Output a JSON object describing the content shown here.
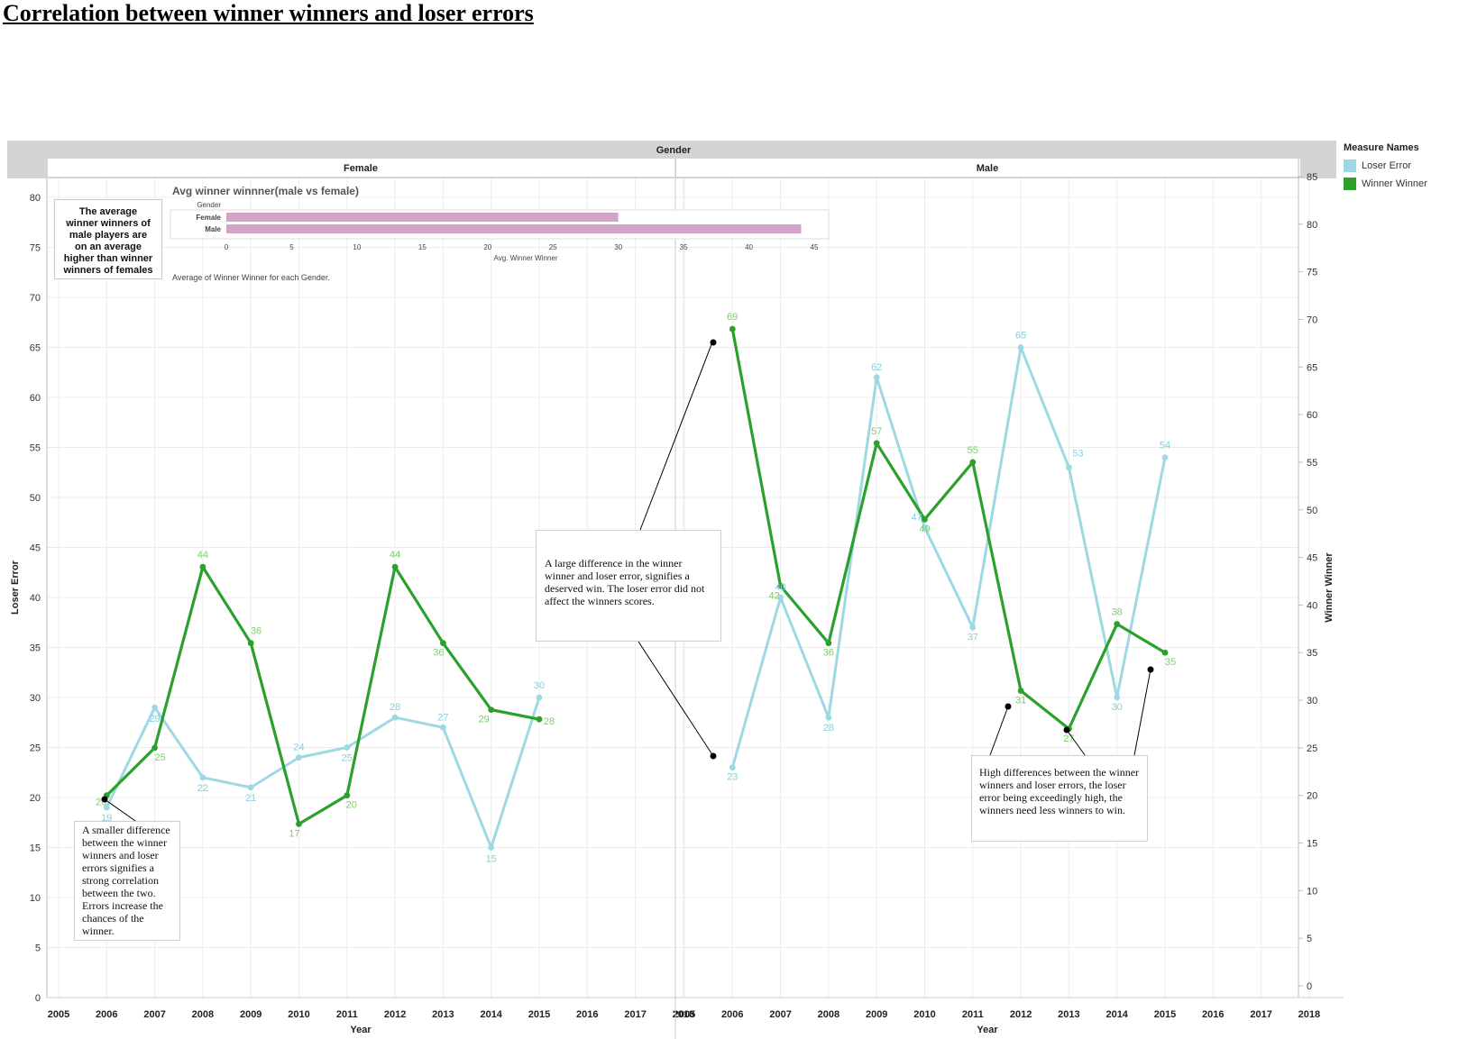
{
  "page": {
    "title": "Correlation between winner winners and loser errors"
  },
  "header": {
    "gender_label": "Gender",
    "female_label": "Female",
    "male_label": "Male"
  },
  "legend": {
    "title": "Measure Names",
    "items": [
      {
        "label": "Loser Error",
        "color": "#9ed9e3"
      },
      {
        "label": "Winner Winner",
        "color": "#2ca02c"
      }
    ]
  },
  "chart_data": [
    {
      "type": "line",
      "xlabel": "Year",
      "ylabel_left": "Loser Error",
      "ylabel_right": "Winner Winner",
      "ylim_left": [
        0,
        80
      ],
      "ylim_right": [
        0,
        85
      ],
      "yticks_left": [
        0,
        5,
        10,
        15,
        20,
        25,
        30,
        35,
        40,
        45,
        50,
        55,
        60,
        65,
        70,
        75,
        80
      ],
      "yticks_right": [
        0,
        5,
        10,
        15,
        20,
        25,
        30,
        35,
        40,
        45,
        50,
        55,
        60,
        65,
        70,
        75,
        80,
        85
      ],
      "xticks": [
        "2005",
        "2006",
        "2007",
        "2008",
        "2009",
        "2010",
        "2011",
        "2012",
        "2013",
        "2014",
        "2015",
        "2016",
        "2017",
        "2018"
      ],
      "grid": true,
      "legend": "right",
      "panels": [
        {
          "name": "Female",
          "x": [
            2006,
            2007,
            2008,
            2009,
            2010,
            2011,
            2012,
            2013,
            2014,
            2015
          ],
          "series": [
            {
              "name": "Loser Error",
              "axis": "left",
              "color": "#9ed9e3",
              "values": [
                19,
                29,
                22,
                21,
                24,
                25,
                28,
                27,
                15,
                30
              ],
              "labels": [
                "19",
                "29",
                "22",
                "21",
                "24",
                "25",
                "28",
                "27",
                "15",
                "30"
              ]
            },
            {
              "name": "Winner Winner",
              "axis": "right",
              "color": "#2ca02c",
              "values": [
                20,
                25,
                44,
                36,
                17,
                20,
                44,
                36,
                29,
                28
              ],
              "labels": [
                "20",
                "25",
                "44",
                "36",
                "17",
                "20",
                "44",
                "36",
                "29",
                "28"
              ]
            }
          ]
        },
        {
          "name": "Male",
          "x": [
            2006,
            2007,
            2008,
            2009,
            2010,
            2011,
            2012,
            2013,
            2014,
            2015
          ],
          "series": [
            {
              "name": "Loser Error",
              "axis": "left",
              "color": "#9ed9e3",
              "values": [
                23,
                40,
                28,
                62,
                47,
                37,
                65,
                53,
                30,
                54
              ],
              "labels": [
                "23",
                "40",
                "28",
                "62",
                "47",
                "37",
                "65",
                "53",
                "30",
                "54"
              ]
            },
            {
              "name": "Winner Winner",
              "axis": "right",
              "color": "#2ca02c",
              "values": [
                69,
                42,
                36,
                57,
                49,
                55,
                31,
                27,
                38,
                35
              ],
              "labels": [
                "69",
                "42",
                "36",
                "57",
                "49",
                "55",
                "31",
                "27",
                "38",
                "35"
              ]
            }
          ]
        }
      ]
    },
    {
      "type": "bar",
      "title": "Avg winner winnner(male vs female)",
      "orientation": "horizontal",
      "row_header": "Gender",
      "categories": [
        "Female",
        "Male"
      ],
      "values": [
        30,
        44
      ],
      "xlabel": "Avg. Winner Winner",
      "xlim": [
        0,
        45
      ],
      "xticks": [
        0,
        5,
        10,
        15,
        20,
        25,
        30,
        35,
        40,
        45
      ],
      "caption": "Average of Winner Winner for each Gender.",
      "color": "#d4a3c9"
    }
  ],
  "annotations": {
    "small_difference": "A smaller difference between the winner winners and loser errors signifies a strong correlation between the two. Errors increase the chances of the winner.",
    "large_difference": "A large difference in the winner winner and loser error, signifies a deserved win. The loser error did not affect the winners scores.",
    "high_differences": "High differences between the winner winners and loser errors, the loser error being exceedingly high, the winners need less winners to win.",
    "average_note": "The average winner winners of male players are on an average higher than winner winners of females"
  },
  "colors": {
    "header_bg": "#d4d4d4",
    "gridline": "#ececec",
    "loser_error": "#9ed9e3",
    "winner_winner": "#2ca02c"
  }
}
